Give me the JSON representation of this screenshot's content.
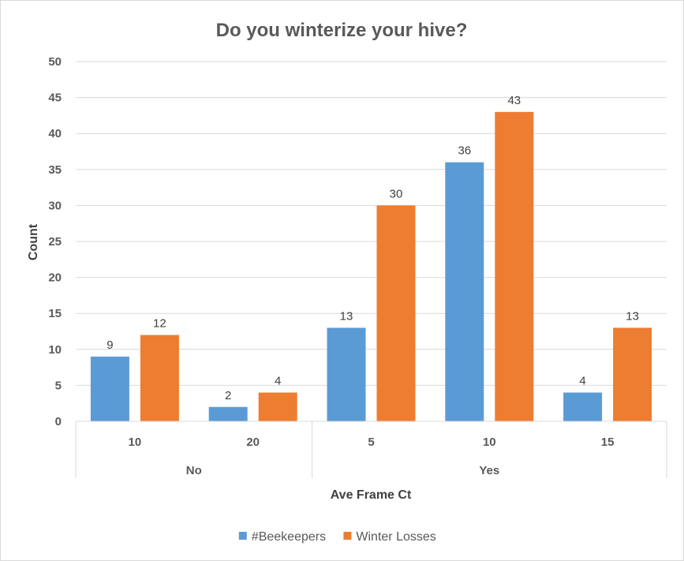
{
  "chart_data": {
    "type": "bar",
    "title": "Do you winterize your hive?",
    "xlabel": "Ave Frame Ct",
    "ylabel": "Count",
    "ylim": [
      0,
      50
    ],
    "yticks": [
      0,
      5,
      10,
      15,
      20,
      25,
      30,
      35,
      40,
      45,
      50
    ],
    "grid": true,
    "legend_position": "bottom",
    "groups": [
      {
        "label": "No",
        "categories": [
          "10",
          "20"
        ]
      },
      {
        "label": "Yes",
        "categories": [
          "5",
          "10",
          "15"
        ]
      }
    ],
    "categories": [
      "10",
      "20",
      "5",
      "10",
      "15"
    ],
    "series": [
      {
        "name": "#Beekeepers",
        "color": "#5b9bd5",
        "values": [
          9,
          2,
          13,
          36,
          4
        ]
      },
      {
        "name": "Winter Losses",
        "color": "#ed7d31",
        "values": [
          12,
          4,
          30,
          43,
          13
        ]
      }
    ]
  }
}
